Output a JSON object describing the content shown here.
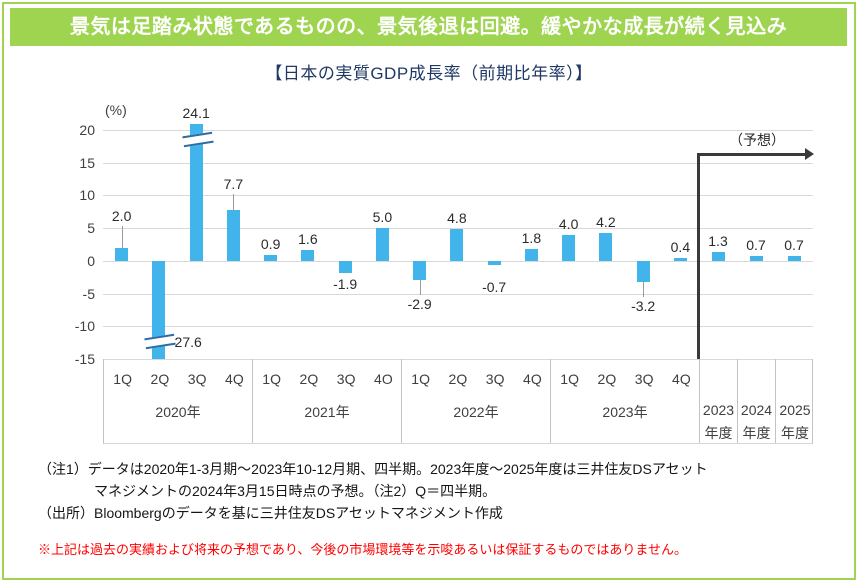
{
  "header": {
    "title": "景気は足踏み状態であるものの、景気後退は回避。緩やかな成長が続く見込み"
  },
  "chart_data": {
    "type": "bar",
    "title": "【日本の実質GDP成長率（前期比年率）】",
    "ylabel": "(%)",
    "ylim": [
      -15,
      20
    ],
    "yticks": [
      20,
      15,
      10,
      5,
      0,
      -5,
      -10,
      -15
    ],
    "grid": true,
    "bar_color": "#41b4ec",
    "forecast_label": "（予想）",
    "groups": [
      {
        "year": "2020年",
        "quarters": [
          "1Q",
          "2Q",
          "3Q",
          "4Q"
        ],
        "values": [
          2.0,
          -27.6,
          24.1,
          7.7
        ]
      },
      {
        "year": "2021年",
        "quarters": [
          "1Q",
          "2Q",
          "3Q",
          "4O"
        ],
        "values": [
          0.9,
          1.6,
          -1.9,
          5.0
        ]
      },
      {
        "year": "2022年",
        "quarters": [
          "1Q",
          "2Q",
          "3Q",
          "4Q"
        ],
        "values": [
          -2.9,
          4.8,
          -0.7,
          1.8
        ]
      },
      {
        "year": "2023年",
        "quarters": [
          "1Q",
          "2Q",
          "3Q",
          "4Q"
        ],
        "values": [
          4.0,
          4.2,
          -3.2,
          0.4
        ]
      }
    ],
    "fiscal_years": [
      {
        "label_top": "2023",
        "label_bottom": "年度",
        "value": 1.3
      },
      {
        "label_top": "2024",
        "label_bottom": "年度",
        "value": 0.7
      },
      {
        "label_top": "2025",
        "label_bottom": "年度",
        "value": 0.7
      }
    ],
    "axis_breaks": [
      {
        "bar": "2020年-3Q",
        "value": 24.1,
        "clipped_at": 20
      },
      {
        "bar": "2020年-2Q",
        "value": -27.6,
        "clipped_at": -15
      }
    ]
  },
  "footnotes": {
    "note1_line1": "（注1）データは2020年1-3月期～2023年10-12月期、四半期。2023年度～2025年度は三井住友DSアセット",
    "note1_line2": "マネジメントの2024年3月15日時点の予想。（注2）Q＝四半期。",
    "source": "（出所）Bloombergのデータを基に三井住友DSアセットマネジメント作成"
  },
  "disclaimer": "※上記は過去の実績および将来の予想であり、今後の市場環境等を示唆あるいは保証するものではありません。",
  "colors": {
    "accent_green": "#9fd450",
    "bar_blue": "#41b4ec",
    "title_navy": "#1f3864",
    "disclaimer_red": "#ff0000",
    "gridline_gray": "#d9d9d9"
  }
}
